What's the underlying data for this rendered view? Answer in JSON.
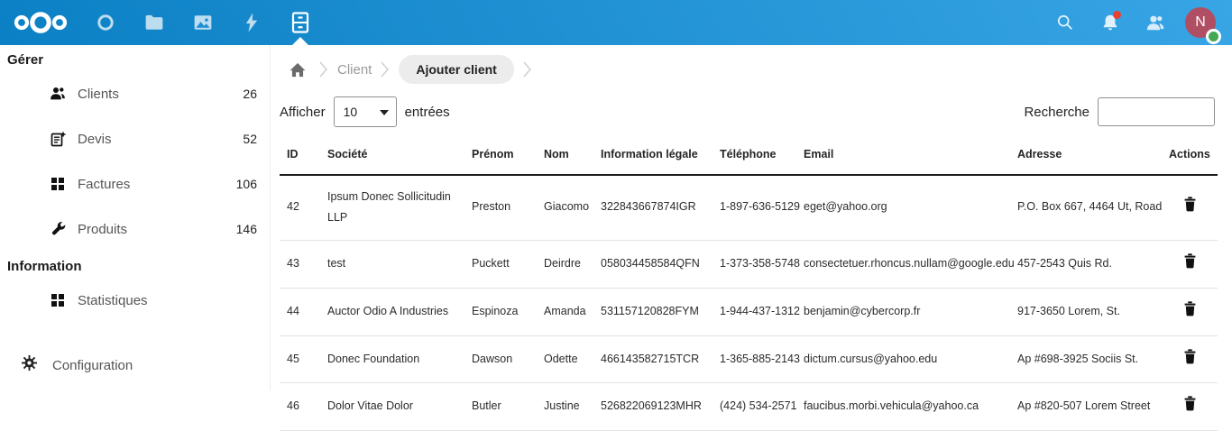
{
  "topbar": {
    "apps": [
      {
        "name": "nextcloud-logo"
      },
      {
        "name": "circle-app"
      },
      {
        "name": "files-app"
      },
      {
        "name": "photos-app"
      },
      {
        "name": "activity-app"
      },
      {
        "name": "invoices-app",
        "active": true
      }
    ],
    "right": [
      "search",
      "notifications",
      "contacts",
      "avatar"
    ],
    "avatar_letter": "N"
  },
  "sidebar": {
    "sections": [
      {
        "title": "Gérer",
        "items": [
          {
            "label": "Clients",
            "count": "26",
            "icon": "users-icon"
          },
          {
            "label": "Devis",
            "count": "52",
            "icon": "document-add-icon"
          },
          {
            "label": "Factures",
            "count": "106",
            "icon": "grid-icon"
          },
          {
            "label": "Produits",
            "count": "146",
            "icon": "wrench-icon"
          }
        ]
      },
      {
        "title": "Information",
        "items": [
          {
            "label": "Statistiques",
            "count": "",
            "icon": "grid-icon"
          }
        ]
      }
    ],
    "footer": {
      "label": "Configuration",
      "icon": "gear-icon"
    }
  },
  "breadcrumb": {
    "home_icon": "home-icon",
    "client_label": "Client",
    "add_client_label": "Ajouter client"
  },
  "controls": {
    "show_label": "Afficher",
    "entries_label": "entrées",
    "page_size": "10",
    "search_label": "Recherche",
    "search_value": ""
  },
  "table": {
    "headers": [
      "ID",
      "Société",
      "Prénom",
      "Nom",
      "Information légale",
      "Téléphone",
      "Email",
      "Adresse",
      "Actions"
    ],
    "rows": [
      [
        "42",
        "Ipsum Donec Sollicitudin LLP",
        "Preston",
        "Giacomo",
        "322843667874IGR",
        "1-897-636-5129",
        "eget@yahoo.org",
        "P.O. Box 667, 4464 Ut, Road"
      ],
      [
        "43",
        "test",
        "Puckett",
        "Deirdre",
        "058034458584QFN",
        "1-373-358-5748",
        "consectetuer.rhoncus.nullam@google.edu",
        "457-2543 Quis Rd."
      ],
      [
        "44",
        "Auctor Odio A Industries",
        "Espinoza",
        "Amanda",
        "531157120828FYM",
        "1-944-437-1312",
        "benjamin@cybercorp.fr",
        "917-3650 Lorem, St."
      ],
      [
        "45",
        "Donec Foundation",
        "Dawson",
        "Odette",
        "466143582715TCR",
        "1-365-885-2143",
        "dictum.cursus@yahoo.edu",
        "Ap #698-3925 Sociis St."
      ],
      [
        "46",
        "Dolor Vitae Dolor",
        "Butler",
        "Justine",
        "526822069123MHR",
        "(424) 534-2571",
        "faucibus.morbi.vehicula@yahoo.ca",
        "Ap #820-507 Lorem Street"
      ]
    ],
    "action_icon": "trash-icon"
  },
  "colors": {
    "header-start": "#0b80c4",
    "header-end": "#38a5e5",
    "avatar-bg": "#b04f63",
    "status-green": "#43a854",
    "notification-red": "#e9402f",
    "accent-blue": "#0082c9"
  }
}
